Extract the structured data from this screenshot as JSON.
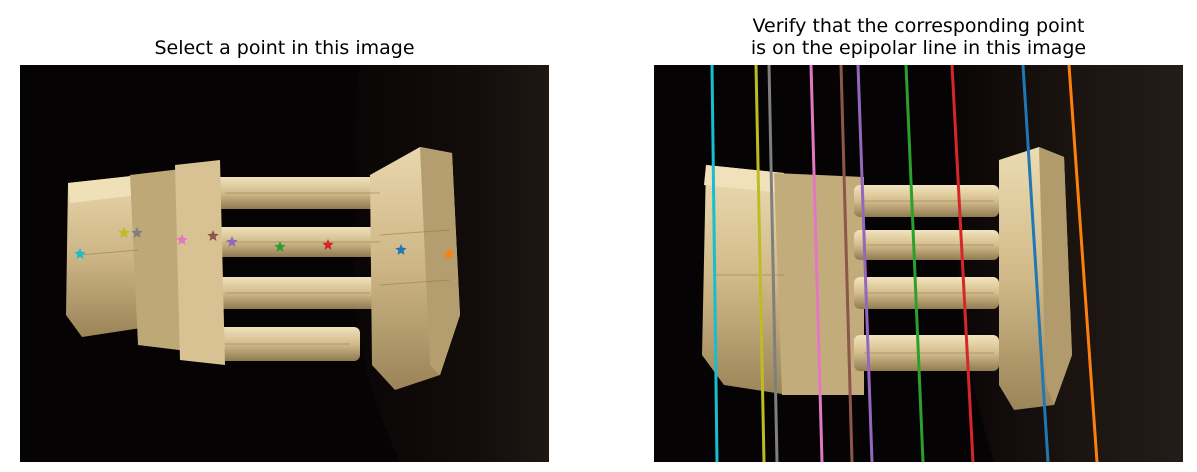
{
  "left_panel": {
    "title": "Select a point in this image",
    "selected_points": [
      {
        "name": "point-cyan",
        "color": "#17becf"
      },
      {
        "name": "point-olive",
        "color": "#bcbd22"
      },
      {
        "name": "point-gray",
        "color": "#7f7f7f"
      },
      {
        "name": "point-pink",
        "color": "#e377c2"
      },
      {
        "name": "point-brown",
        "color": "#8c564b"
      },
      {
        "name": "point-purple",
        "color": "#9467bd"
      },
      {
        "name": "point-green",
        "color": "#2ca02c"
      },
      {
        "name": "point-red",
        "color": "#d62728"
      },
      {
        "name": "point-blue",
        "color": "#1f77b4"
      },
      {
        "name": "point-orange",
        "color": "#ff7f0e"
      }
    ]
  },
  "right_panel": {
    "title_line1": "Verify that the corresponding point",
    "title_line2": "is on the epipolar line in this image",
    "epipolar_lines": [
      {
        "name": "epipolar-line-cyan",
        "color": "#17becf"
      },
      {
        "name": "epipolar-line-olive",
        "color": "#bcbd22"
      },
      {
        "name": "epipolar-line-gray",
        "color": "#7f7f7f"
      },
      {
        "name": "epipolar-line-pink",
        "color": "#e377c2"
      },
      {
        "name": "epipolar-line-brown",
        "color": "#8c564b"
      },
      {
        "name": "epipolar-line-purple",
        "color": "#9467bd"
      },
      {
        "name": "epipolar-line-green",
        "color": "#2ca02c"
      },
      {
        "name": "epipolar-line-red",
        "color": "#d62728"
      },
      {
        "name": "epipolar-line-blue",
        "color": "#1f77b4"
      },
      {
        "name": "epipolar-line-orange",
        "color": "#ff7f0e"
      }
    ]
  }
}
